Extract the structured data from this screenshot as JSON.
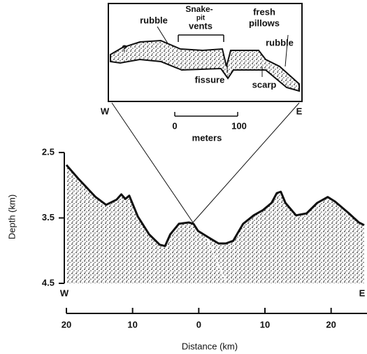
{
  "chart_data": {
    "type": "area",
    "xlabel": "Distance   (km)",
    "ylabel": "Depth (km)",
    "x": [
      -20,
      -18.2,
      -15.6,
      -14,
      -12.4,
      -11.7,
      -11.1,
      -10.5,
      -9.2,
      -7.5,
      -5.9,
      -5.1,
      -4.3,
      -3,
      -1.5,
      -0.8,
      -0.1,
      1.5,
      3,
      4.1,
      5.2,
      6.7,
      8.3,
      9.7,
      11,
      11.8,
      12.4,
      13.1,
      14.7,
      16.3,
      17.9,
      19.5,
      20.6,
      22.7,
      24.2,
      25
    ],
    "values": [
      2.69,
      2.9,
      3.18,
      3.3,
      3.22,
      3.14,
      3.21,
      3.16,
      3.48,
      3.75,
      3.91,
      3.93,
      3.75,
      3.59,
      3.57,
      3.59,
      3.7,
      3.8,
      3.89,
      3.89,
      3.85,
      3.59,
      3.46,
      3.38,
      3.27,
      3.12,
      3.1,
      3.27,
      3.46,
      3.43,
      3.27,
      3.18,
      3.25,
      3.43,
      3.57,
      3.61
    ],
    "color": "#111111",
    "xlim": [
      -20,
      25
    ],
    "ylim": [
      2.5,
      4.5
    ],
    "y_inverted": true,
    "xticks": [
      {
        "value": -20,
        "label": "20"
      },
      {
        "value": -10,
        "label": "10"
      },
      0,
      10,
      20
    ],
    "yticks": [
      2.5,
      3.5,
      4.5
    ],
    "end_labels": [
      "W",
      "E"
    ],
    "inset": {
      "labels": [
        "rubble",
        "Snake-",
        "pit",
        "vents",
        "fresh",
        "pillows",
        "rubble",
        "fissure",
        "scarp",
        "?"
      ],
      "end_labels": [
        "W",
        "E"
      ],
      "scale_ticks": [
        "0",
        "100"
      ],
      "scale_unit": "meters"
    }
  }
}
